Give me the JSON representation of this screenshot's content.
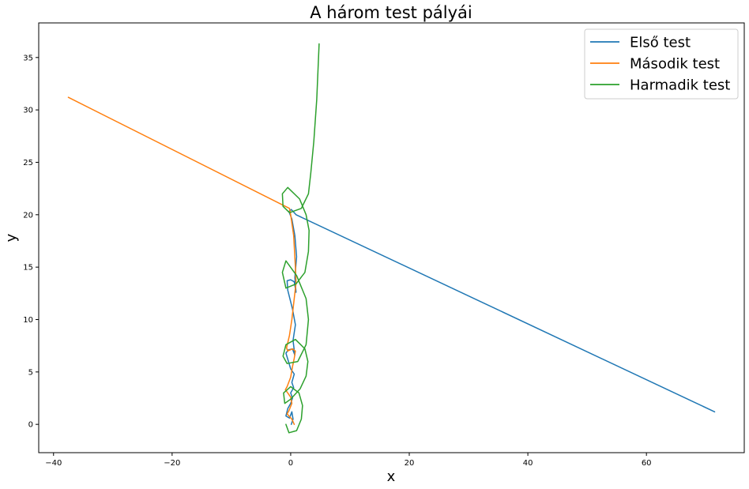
{
  "chart_data": {
    "type": "line",
    "title": "A három test pályái",
    "xlabel": "x",
    "ylabel": "y",
    "xlim": [
      -42.5,
      76.5
    ],
    "ylim": [
      -2.7,
      38.3
    ],
    "xticks": [
      -40,
      -20,
      0,
      20,
      40,
      60
    ],
    "yticks": [
      0,
      5,
      10,
      15,
      20,
      25,
      30,
      35
    ],
    "grid": false,
    "legend_position": "top-right",
    "series": [
      {
        "name": "Első test",
        "color": "#1f77b4",
        "x": [
          0.1,
          0.4,
          0.2,
          -0.2,
          -0.8,
          -0.5,
          0.0,
          0.3,
          0.0,
          0.5,
          0.2,
          0.6,
          0.0,
          -0.8,
          -0.4,
          0.3,
          0.7,
          0.4,
          0.8,
          0.3,
          -0.5,
          -0.6,
          0.0,
          0.6,
          0.9,
          0.7,
          1.0,
          0.7,
          0.2,
          -0.3,
          0.1,
          0.9,
          71.5
        ],
        "y": [
          0.0,
          0.5,
          1.2,
          0.6,
          0.8,
          1.5,
          2.0,
          2.5,
          3.0,
          3.5,
          4.0,
          4.8,
          5.3,
          6.8,
          7.1,
          7.2,
          6.6,
          8.0,
          9.5,
          11.0,
          12.8,
          13.7,
          13.8,
          13.6,
          12.6,
          14.0,
          16.0,
          18.0,
          19.6,
          20.3,
          20.5,
          20.0,
          1.2
        ]
      },
      {
        "name": "Második test",
        "color": "#ff7f0e",
        "x": [
          0.6,
          0.2,
          -0.3,
          -0.6,
          -0.3,
          0.2,
          0.0,
          -0.5,
          -0.9,
          -0.6,
          0.0,
          0.3,
          0.6,
          0.8,
          0.3,
          -0.5,
          -0.7,
          -0.2,
          0.2,
          0.6,
          0.9,
          0.8,
          0.5,
          0.0,
          -0.2,
          -37.5
        ],
        "y": [
          0.0,
          0.5,
          0.8,
          1.0,
          1.3,
          2.0,
          2.6,
          3.0,
          3.3,
          3.6,
          4.5,
          5.5,
          6.3,
          7.0,
          7.2,
          7.0,
          7.3,
          8.5,
          10.0,
          12.0,
          13.5,
          15.0,
          18.0,
          20.0,
          20.6,
          31.2
        ]
      },
      {
        "name": "Harmadik test",
        "color": "#2ca02c",
        "x": [
          -0.8,
          -0.3,
          1.0,
          1.8,
          2.0,
          1.4,
          0.0,
          -1.2,
          -1.0,
          0.0,
          1.6,
          2.6,
          2.9,
          2.4,
          0.8,
          -0.8,
          -1.3,
          -0.6,
          1.2,
          2.6,
          3.0,
          2.6,
          1.0,
          -0.8,
          -1.4,
          -0.8,
          0.9,
          2.4,
          3.0,
          3.1,
          2.6,
          1.5,
          -0.5,
          -1.4,
          -1.3,
          -0.2,
          1.8,
          3.0,
          3.4,
          3.9,
          4.4,
          4.8
        ],
        "y": [
          0.0,
          -0.8,
          -0.6,
          0.5,
          1.8,
          3.0,
          3.6,
          3.0,
          2.0,
          2.4,
          3.4,
          4.6,
          6.0,
          7.2,
          8.1,
          7.6,
          6.5,
          5.8,
          6.0,
          7.6,
          10.0,
          12.0,
          14.2,
          15.6,
          14.5,
          13.0,
          13.4,
          14.5,
          16.5,
          18.5,
          20.0,
          21.5,
          22.6,
          22.0,
          20.8,
          20.2,
          20.6,
          22.0,
          24.0,
          27.0,
          31.0,
          36.3
        ]
      }
    ]
  }
}
